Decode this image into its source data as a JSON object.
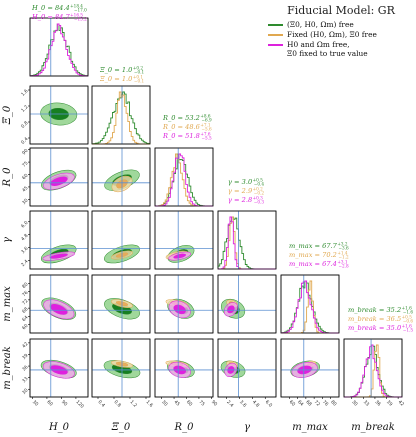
{
  "figure": {
    "legend_title": "Fiducial Model: GR"
  },
  "colors": {
    "green_line": "#2e8b2e",
    "green_dark": "#0f7a1a",
    "green_light": "#8fd18a",
    "orange_line": "#e0a850",
    "orange_dark": "#e8aa5a",
    "orange_light": "#f6dcae",
    "magenta_line": "#dd22dd",
    "magenta_dark": "#e019e0",
    "magenta_light": "#f5a9f0",
    "truth": "#5b8fd1"
  },
  "chart_data": {
    "type": "corner",
    "parameters": [
      "H0",
      "Xi0",
      "R0",
      "gamma",
      "m_max",
      "m_break"
    ],
    "axis_labels": [
      "H_0",
      "Ξ_0",
      "R_0",
      "γ",
      "m_max",
      "m_break"
    ],
    "truths": [
      68,
      1.0,
      50,
      3.5,
      67,
      35
    ],
    "ranges": [
      [
        25,
        145
      ],
      [
        0.25,
        1.7
      ],
      [
        22,
        92
      ],
      [
        1.6,
        7.0
      ],
      [
        56,
        84
      ],
      [
        28,
        43
      ]
    ],
    "ticks": [
      [
        30,
        60,
        90,
        120,
        150
      ],
      [
        0.4,
        0.8,
        1.2,
        1.6
      ],
      [
        30,
        45,
        60,
        75,
        90
      ],
      [
        2.4,
        3.6,
        4.8,
        6.0
      ],
      [
        60,
        64,
        68,
        72,
        76,
        80
      ],
      [
        30,
        33,
        36,
        39,
        42
      ]
    ],
    "tick_labels": [
      [
        "30",
        "60",
        "90",
        "120",
        "150"
      ],
      [
        "0.4",
        "0.8",
        "1.2",
        "1.6"
      ],
      [
        "30",
        "45",
        "60",
        "75",
        "90"
      ],
      [
        "2.4",
        "3.6",
        "4.8",
        "6.0"
      ],
      [
        "60",
        "64",
        "68",
        "72",
        "76",
        "80"
      ],
      [
        "30",
        "33",
        "36",
        "39",
        "42"
      ]
    ],
    "series": [
      {
        "name": "(Ξ0, H0, Ωm) free",
        "color_key": "green",
        "marginals": [
          {
            "mean": 84.4,
            "sd": 18
          },
          {
            "mean": 1.0,
            "sd": 0.22
          },
          {
            "mean": 53.2,
            "sd": 8.0
          },
          {
            "mean": 3.0,
            "sd": 0.55
          },
          {
            "mean": 67.7,
            "sd": 3.4
          },
          {
            "mean": 35.2,
            "sd": 1.6
          }
        ],
        "summaries": [
          {
            "label": "H_0",
            "value": "84.4",
            "plus": "+18.4",
            "minus": "−17.0"
          },
          {
            "label": "Ξ_0",
            "value": "1.0",
            "plus": "+0.2",
            "minus": "−0.1"
          },
          {
            "label": "R_0",
            "value": "53.2",
            "plus": "+8.6",
            "minus": "−6.9"
          },
          {
            "label": "γ",
            "value": "3.0",
            "plus": "+0.5",
            "minus": "−0.4"
          },
          {
            "label": "m_max",
            "value": "67.7",
            "plus": "+3.2",
            "minus": "−3.6"
          },
          {
            "label": "m_break",
            "value": "35.2",
            "plus": "+1.6",
            "minus": "−1.6"
          }
        ]
      },
      {
        "name": "Fixed (H0, Ωm), Ξ0 free",
        "color_key": "orange",
        "marginals": [
          null,
          {
            "mean": 1.0,
            "sd": 0.13
          },
          {
            "mean": 48.6,
            "sd": 6.5
          },
          {
            "mean": 2.9,
            "sd": 0.25
          },
          {
            "mean": 70.2,
            "sd": 1.3
          },
          {
            "mean": 36.5,
            "sd": 0.6
          }
        ],
        "summaries": [
          null,
          {
            "label": "Ξ_0",
            "value": "1.0",
            "plus": "+0.1",
            "minus": "−0.1"
          },
          {
            "label": "R_0",
            "value": "48.6",
            "plus": "+7.1",
            "minus": "−5.6"
          },
          {
            "label": "γ",
            "value": "2.9",
            "plus": "+0.2",
            "minus": "−0.2"
          },
          {
            "label": "m_max",
            "value": "70.2",
            "plus": "+1.4",
            "minus": "−1.2"
          },
          {
            "label": "m_break",
            "value": "36.5",
            "plus": "+0.5",
            "minus": "−0.6"
          }
        ]
      },
      {
        "name": "H0 and Ωm free,\nΞ0 fixed to true value",
        "color_key": "magenta",
        "marginals": [
          {
            "mean": 84.7,
            "sd": 16
          },
          null,
          {
            "mean": 51.8,
            "sd": 6.5
          },
          {
            "mean": 2.8,
            "sd": 0.25
          },
          {
            "mean": 67.4,
            "sd": 3.0
          },
          {
            "mean": 35.0,
            "sd": 1.5
          }
        ],
        "summaries": [
          {
            "label": "H_0",
            "value": "84.7",
            "plus": "+16.5",
            "minus": "−15.2"
          },
          null,
          {
            "label": "R_0",
            "value": "51.8",
            "plus": "+7.6",
            "minus": "−5.5"
          },
          {
            "label": "γ",
            "value": "2.8",
            "plus": "+0.3",
            "minus": "−0.3"
          },
          {
            "label": "m_max",
            "value": "67.4",
            "plus": "+3.1",
            "minus": "−2.8"
          },
          {
            "label": "m_break",
            "value": "35.0",
            "plus": "+1.6",
            "minus": "−1.5"
          }
        ]
      }
    ],
    "correlations": {
      "0-1": -0.1,
      "0-2": 0.55,
      "0-3": 0.55,
      "0-4": -0.6,
      "0-5": -0.45,
      "1-2": 0.6,
      "1-3": 0.55,
      "1-4": -0.5,
      "1-5": -0.4,
      "2-3": 0.5,
      "2-4": -0.45,
      "2-5": -0.35,
      "3-4": -0.45,
      "3-5": -0.35,
      "4-5": 0.3
    }
  }
}
